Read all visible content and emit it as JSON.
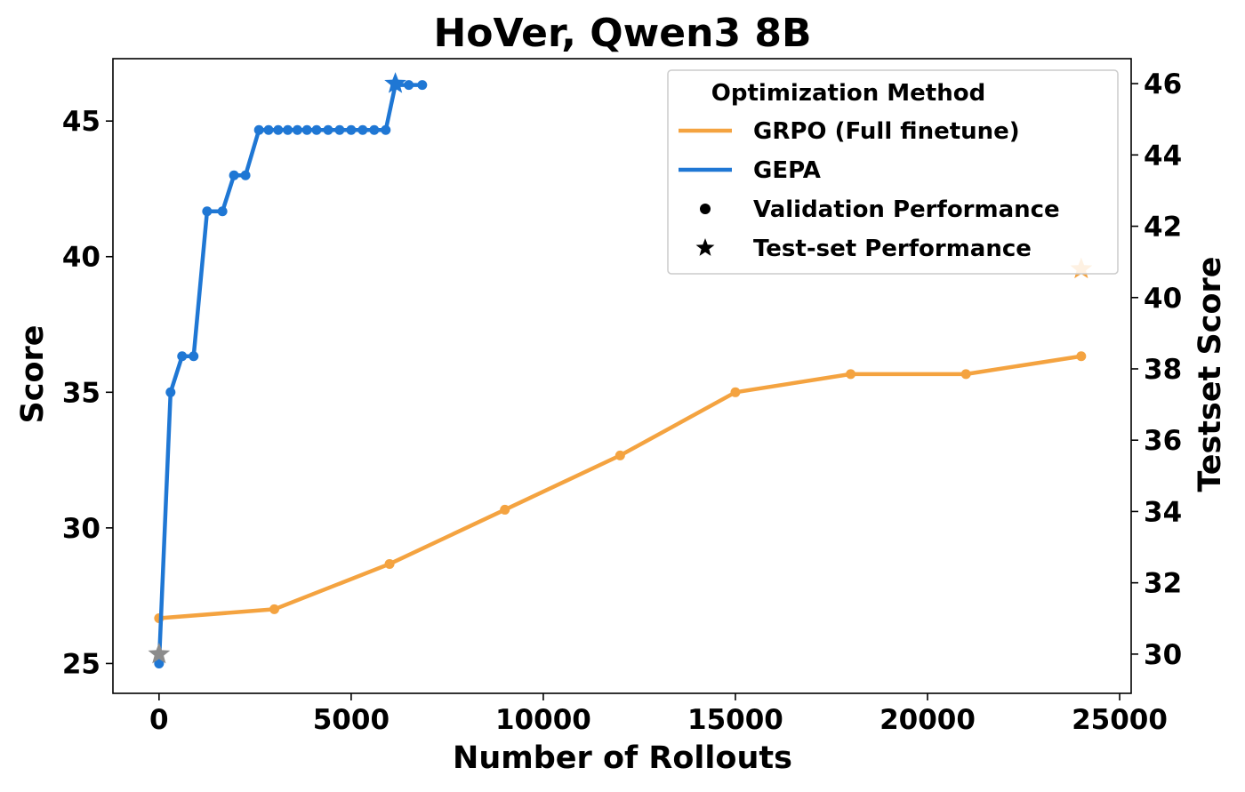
{
  "chart_data": {
    "type": "line",
    "title": "HoVer, Qwen3 8B",
    "xlabel": "Number of Rollouts",
    "ylabel": "Score",
    "y2label": "Testset Score",
    "xlim": [
      -1200,
      25300
    ],
    "ylim": [
      23.9,
      47.3
    ],
    "y2lim": [
      28.9,
      46.7
    ],
    "xticks": [
      0,
      5000,
      10000,
      15000,
      20000,
      25000
    ],
    "yticks": [
      25,
      30,
      35,
      40,
      45
    ],
    "y2ticks": [
      30,
      32,
      34,
      36,
      38,
      40,
      42,
      44,
      46
    ],
    "colors": {
      "grpo": "#f4a340",
      "gepa": "#1f77d4",
      "baseline_star": "#8c8c8c"
    },
    "legend": {
      "title": "Optimization Method",
      "placement": "upper right",
      "entries": [
        {
          "label": "GRPO (Full finetune)",
          "kind": "line",
          "color": "#f4a340"
        },
        {
          "label": "GEPA",
          "kind": "line",
          "color": "#1f77d4"
        },
        {
          "label": "Validation Performance",
          "kind": "dot",
          "color": "#000000"
        },
        {
          "label": "Test-set Performance",
          "kind": "star",
          "color": "#000000"
        }
      ]
    },
    "series": [
      {
        "name": "GRPO (Full finetune)",
        "color": "#f4a340",
        "x": [
          0,
          3000,
          6000,
          9000,
          12000,
          15000,
          18000,
          21000,
          24000
        ],
        "y": [
          26.67,
          27.0,
          28.67,
          30.67,
          32.67,
          35.0,
          35.67,
          35.67,
          36.33
        ]
      },
      {
        "name": "GEPA",
        "color": "#1f77d4",
        "x": [
          0,
          300,
          600,
          900,
          1250,
          1650,
          1950,
          2250,
          2600,
          2850,
          3100,
          3350,
          3600,
          3850,
          4100,
          4400,
          4700,
          5000,
          5300,
          5600,
          5900,
          6150,
          6500,
          6850
        ],
        "y": [
          25.0,
          35.0,
          36.33,
          36.33,
          41.67,
          41.67,
          43.0,
          43.0,
          44.67,
          44.67,
          44.67,
          44.67,
          44.67,
          44.67,
          44.67,
          44.67,
          44.67,
          44.67,
          44.67,
          44.67,
          44.67,
          46.33,
          46.33,
          46.33
        ]
      }
    ],
    "test_points": [
      {
        "x": 0,
        "y": 30.0,
        "axis": "right",
        "color": "#8c8c8c"
      },
      {
        "x": 6150,
        "y": 46.0,
        "axis": "right",
        "color": "#1f77d4"
      },
      {
        "x": 24000,
        "y": 40.8,
        "axis": "right",
        "color": "#f4a340"
      }
    ]
  }
}
